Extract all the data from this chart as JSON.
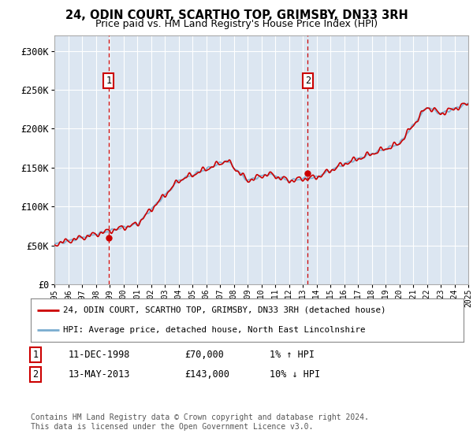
{
  "title": "24, ODIN COURT, SCARTHO TOP, GRIMSBY, DN33 3RH",
  "subtitle": "Price paid vs. HM Land Registry's House Price Index (HPI)",
  "background_color": "#ffffff",
  "plot_bg_color": "#dce6f1",
  "grid_color": "#ffffff",
  "ylim": [
    0,
    320000
  ],
  "yticks": [
    0,
    50000,
    100000,
    150000,
    200000,
    250000,
    300000
  ],
  "ytick_labels": [
    "£0",
    "£50K",
    "£100K",
    "£150K",
    "£200K",
    "£250K",
    "£300K"
  ],
  "year_start": 1995,
  "year_end": 2025,
  "sale1_date": 1998.94,
  "sale1_price": 70000,
  "sale1_label": "1",
  "sale1_text": "11-DEC-1998",
  "sale1_amount": "£70,000",
  "sale1_hpi": "1% ↑ HPI",
  "sale2_date": 2013.37,
  "sale2_price": 143000,
  "sale2_label": "2",
  "sale2_text": "13-MAY-2013",
  "sale2_amount": "£143,000",
  "sale2_hpi": "10% ↓ HPI",
  "legend_line1": "24, ODIN COURT, SCARTHO TOP, GRIMSBY, DN33 3RH (detached house)",
  "legend_line2": "HPI: Average price, detached house, North East Lincolnshire",
  "footer": "Contains HM Land Registry data © Crown copyright and database right 2024.\nThis data is licensed under the Open Government Licence v3.0.",
  "line_color_red": "#cc0000",
  "line_color_blue": "#7aadcf"
}
